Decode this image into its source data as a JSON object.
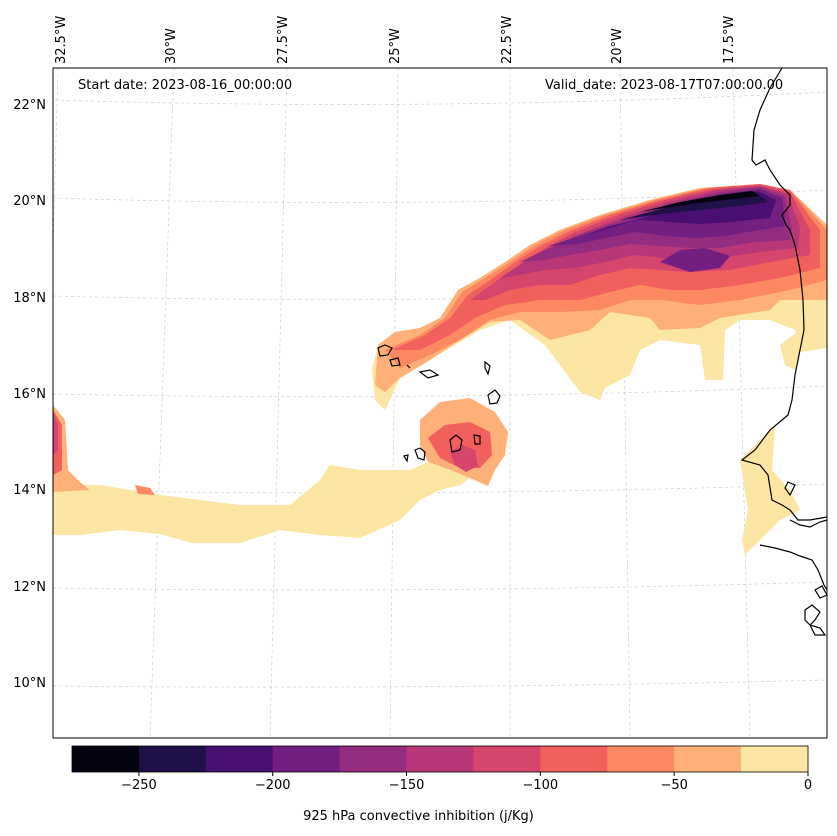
{
  "map": {
    "start_date": "Start date: 2023-08-16_00:00:00",
    "valid_date": "Valid_date: 2023-08-17T07:00:00.00",
    "lat_labels": [
      "22°N",
      "20°N",
      "18°N",
      "16°N",
      "14°N",
      "12°N",
      "10°N"
    ],
    "lon_labels": [
      "32.5°W",
      "30°W",
      "27.5°W",
      "25°W",
      "22.5°W",
      "20°W",
      "17.5°W"
    ],
    "variable": "925 hPa convective inhibition",
    "region": "Eastern tropical Atlantic, Cape Verde and West African coast"
  },
  "colorbar": {
    "label": "925 hPa convective inhibition (j/Kg)",
    "ticks": [
      "−250",
      "−200",
      "−150",
      "−100",
      "−50",
      "0"
    ],
    "tick_values": [
      -250,
      -200,
      -150,
      -100,
      -50,
      0
    ],
    "range": [
      -275,
      0
    ],
    "bins": [
      -275,
      -250,
      -225,
      -200,
      -175,
      -150,
      -125,
      -100,
      -75,
      -50,
      -25,
      0
    ],
    "colors": [
      "#05030f",
      "#1f1048",
      "#4a0f72",
      "#721f81",
      "#942c80",
      "#b73779",
      "#d6456c",
      "#f1605d",
      "#fc8961",
      "#feb078",
      "#fde6a4"
    ]
  }
}
